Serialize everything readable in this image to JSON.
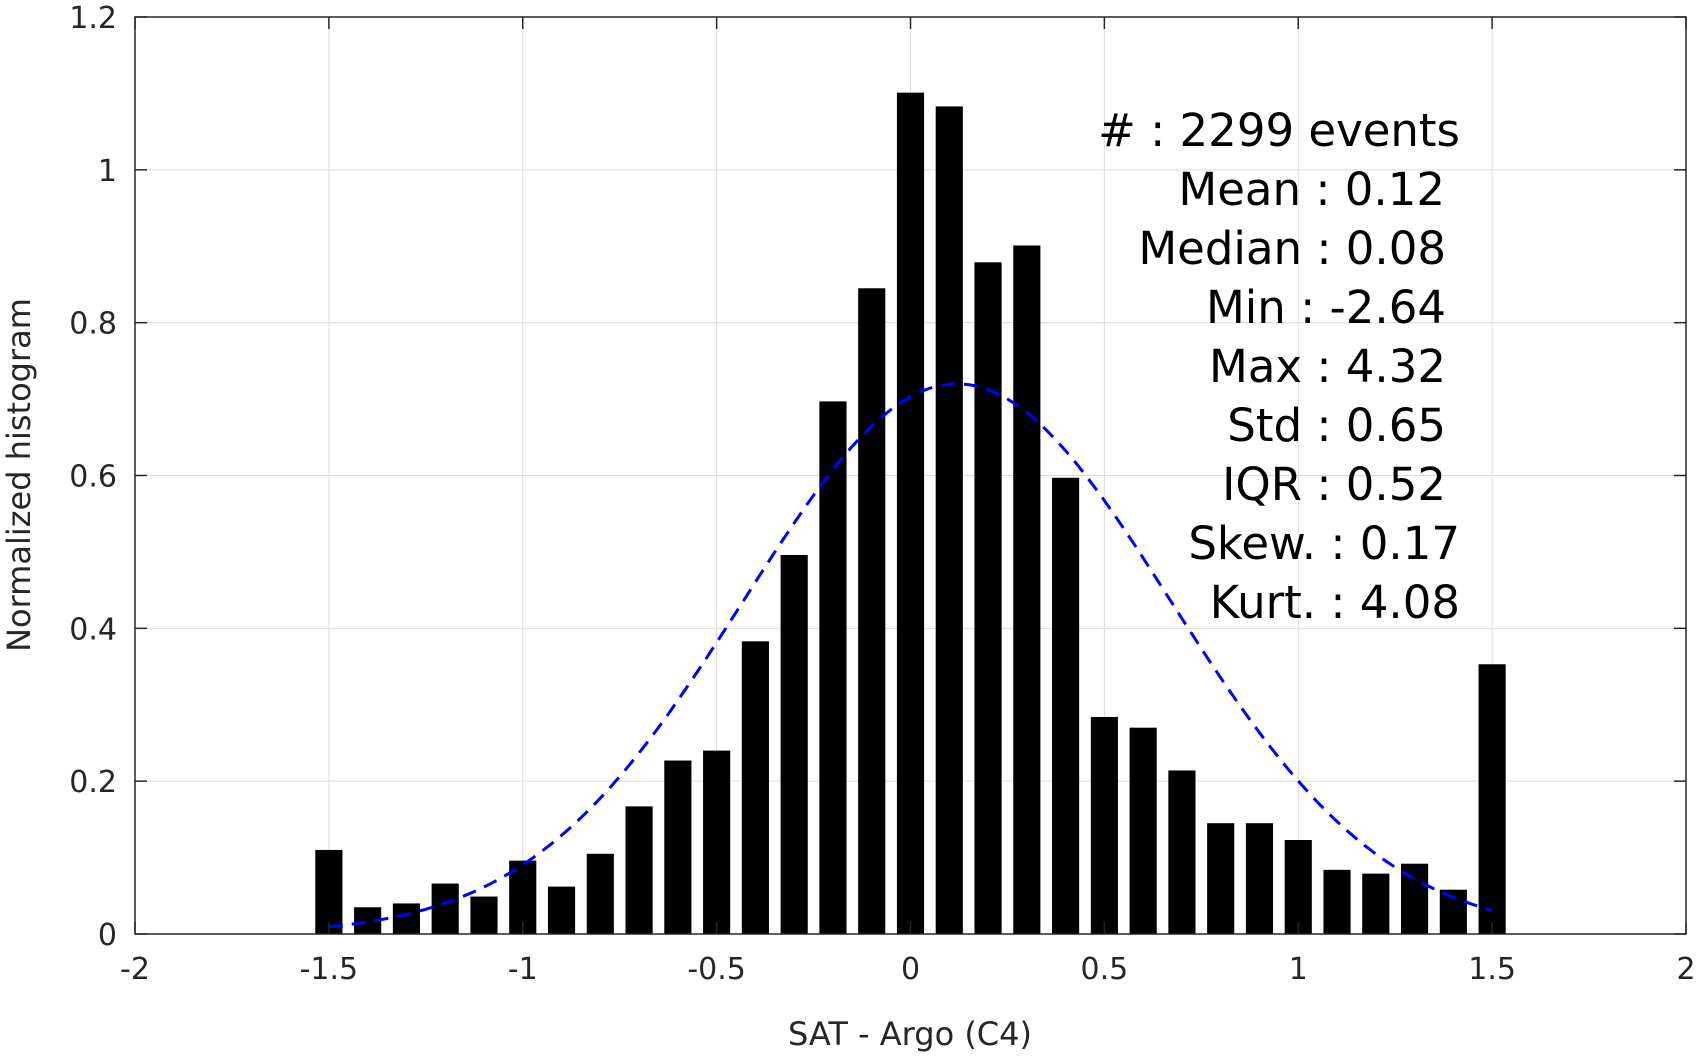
{
  "chart_data": {
    "type": "bar",
    "xlabel": "SAT - Argo (C4)",
    "ylabel": "Normalized histogram",
    "xlim": [
      -2,
      2
    ],
    "ylim": [
      0,
      1.2
    ],
    "grid": true,
    "xticks": [
      "-2",
      "-1.5",
      "-1",
      "-0.5",
      "0",
      "0.5",
      "1",
      "1.5",
      "2"
    ],
    "yticks": [
      "0",
      "0.2",
      "0.4",
      "0.6",
      "0.8",
      "1",
      "1.2"
    ],
    "bar_color": "#000000",
    "bar_width": 0.07,
    "bins": [
      {
        "x": -1.5,
        "value": 0.11
      },
      {
        "x": -1.4,
        "value": 0.035
      },
      {
        "x": -1.3,
        "value": 0.04
      },
      {
        "x": -1.2,
        "value": 0.066
      },
      {
        "x": -1.1,
        "value": 0.049
      },
      {
        "x": -1.0,
        "value": 0.096
      },
      {
        "x": -0.9,
        "value": 0.062
      },
      {
        "x": -0.8,
        "value": 0.105
      },
      {
        "x": -0.7,
        "value": 0.167
      },
      {
        "x": -0.6,
        "value": 0.227
      },
      {
        "x": -0.5,
        "value": 0.24
      },
      {
        "x": -0.4,
        "value": 0.383
      },
      {
        "x": -0.3,
        "value": 0.496
      },
      {
        "x": -0.2,
        "value": 0.697
      },
      {
        "x": -0.1,
        "value": 0.845
      },
      {
        "x": 0.0,
        "value": 1.101
      },
      {
        "x": 0.1,
        "value": 1.083
      },
      {
        "x": 0.2,
        "value": 0.879
      },
      {
        "x": 0.3,
        "value": 0.901
      },
      {
        "x": 0.4,
        "value": 0.597
      },
      {
        "x": 0.5,
        "value": 0.284
      },
      {
        "x": 0.6,
        "value": 0.27
      },
      {
        "x": 0.7,
        "value": 0.214
      },
      {
        "x": 0.8,
        "value": 0.145
      },
      {
        "x": 0.9,
        "value": 0.145
      },
      {
        "x": 1.0,
        "value": 0.123
      },
      {
        "x": 1.1,
        "value": 0.084
      },
      {
        "x": 1.2,
        "value": 0.079
      },
      {
        "x": 1.3,
        "value": 0.092
      },
      {
        "x": 1.4,
        "value": 0.058
      },
      {
        "x": 1.5,
        "value": 0.353
      }
    ],
    "fit_curve": {
      "style": "dashed",
      "color": "#0000ff",
      "mean": 0.12,
      "std": 0.55,
      "peak": 0.72,
      "x_range": [
        -1.5,
        1.5
      ]
    },
    "stats_lines": [
      "#  : 2299 events",
      "Mean : 0.12",
      "Median : 0.08",
      "Min : -2.64",
      "Max : 4.32",
      "Std : 0.65",
      "IQR : 0.52",
      "Skew. : 0.17",
      "Kurt. : 4.08"
    ]
  }
}
